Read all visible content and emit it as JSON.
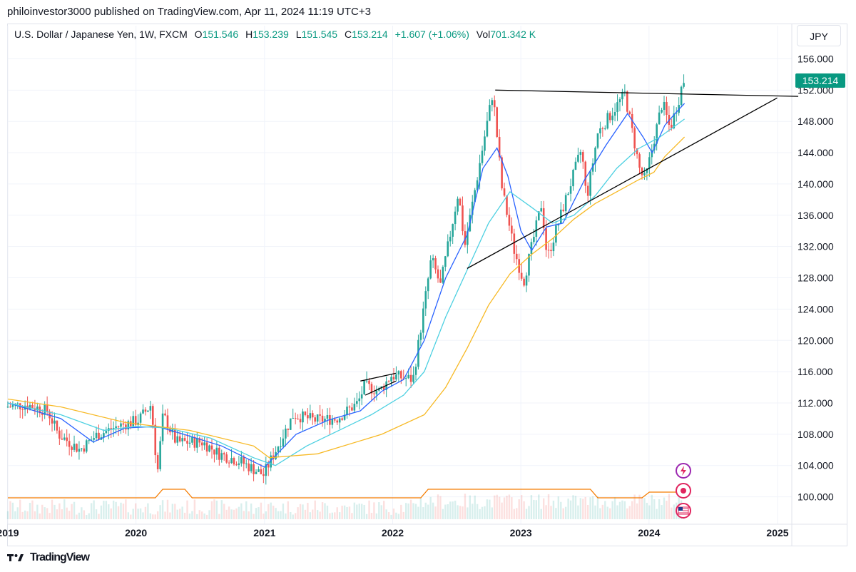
{
  "header": {
    "published_line": "philoinvestor3000 published on TradingView.com, Apr 11, 2024 11:19 UTC+3"
  },
  "legend": {
    "symbol": "U.S. Dollar / Japanese Yen, 1W, FXCM",
    "o_label": "O",
    "o_value": "151.546",
    "h_label": "H",
    "h_value": "153.239",
    "l_label": "L",
    "l_value": "151.545",
    "c_label": "C",
    "c_value": "153.214",
    "change": "+1.607 (+1.06%)",
    "vol_label": "Vol",
    "vol_value": "701.342 K"
  },
  "currency_button": "JPY",
  "footer": {
    "brand": "TradingView"
  },
  "colors": {
    "up": "#26a69a",
    "down": "#ef5350",
    "ema_fast": "#2962ff",
    "ema_mid": "#4dd0e1",
    "ema_slow": "#f7b924",
    "volume_ma": "#f57c00",
    "price_tag": "#089981",
    "grid": "#f0f3fa"
  },
  "chart_data": {
    "type": "candlestick",
    "title": "U.S. Dollar / Japanese Yen, 1W, FXCM",
    "ylim": [
      96.5,
      157.5
    ],
    "y_ticks": [
      "156.000",
      "152.000",
      "148.000",
      "144.000",
      "140.000",
      "136.000",
      "132.000",
      "128.000",
      "124.000",
      "120.000",
      "116.000",
      "112.000",
      "108.000",
      "104.000",
      "100.000"
    ],
    "x_ticks": [
      "2019",
      "2020",
      "2021",
      "2022",
      "2023",
      "2024",
      "2025"
    ],
    "last_price": "153.214",
    "price_path": [
      [
        "2019-01-01",
        111.5
      ],
      [
        "2019-03-01",
        111.8
      ],
      [
        "2019-05-01",
        111.0
      ],
      [
        "2019-06-01",
        108.0
      ],
      [
        "2019-08-01",
        106.0
      ],
      [
        "2019-09-15",
        107.8
      ],
      [
        "2019-11-15",
        109.0
      ],
      [
        "2020-01-15",
        109.8
      ],
      [
        "2020-02-20",
        111.8
      ],
      [
        "2020-03-09",
        103.0
      ],
      [
        "2020-03-25",
        110.5
      ],
      [
        "2020-05-01",
        107.0
      ],
      [
        "2020-07-15",
        107.0
      ],
      [
        "2020-09-01",
        105.5
      ],
      [
        "2020-11-01",
        104.5
      ],
      [
        "2021-01-05",
        102.8
      ],
      [
        "2021-03-31",
        110.5
      ],
      [
        "2021-06-01",
        109.8
      ],
      [
        "2021-08-01",
        110.0
      ],
      [
        "2021-10-01",
        112.0
      ],
      [
        "2021-10-20",
        114.2
      ],
      [
        "2021-12-01",
        113.5
      ],
      [
        "2022-01-04",
        115.5
      ],
      [
        "2022-03-07",
        115.0
      ],
      [
        "2022-04-28",
        130.5
      ],
      [
        "2022-05-24",
        127.0
      ],
      [
        "2022-07-14",
        139.0
      ],
      [
        "2022-08-01",
        132.0
      ],
      [
        "2022-10-20",
        151.8
      ],
      [
        "2022-11-15",
        139.5
      ],
      [
        "2022-12-20",
        131.5
      ],
      [
        "2023-01-16",
        127.5
      ],
      [
        "2023-03-08",
        137.5
      ],
      [
        "2023-03-24",
        130.5
      ],
      [
        "2023-06-30",
        144.5
      ],
      [
        "2023-07-14",
        138.0
      ],
      [
        "2023-08-15",
        146.5
      ],
      [
        "2023-10-31",
        151.5
      ],
      [
        "2023-12-14",
        141.5
      ],
      [
        "2023-12-28",
        140.5
      ],
      [
        "2024-02-15",
        150.5
      ],
      [
        "2024-03-08",
        147.0
      ],
      [
        "2024-04-08",
        151.8
      ],
      [
        "2024-04-11",
        153.2
      ]
    ],
    "moving_averages": [
      {
        "points": [
          [
            "2019-01-01",
            112.0
          ],
          [
            "2019-06-01",
            110.0
          ],
          [
            "2019-09-01",
            107.0
          ],
          [
            "2019-12-01",
            108.8
          ],
          [
            "2020-03-01",
            109.0
          ],
          [
            "2020-05-01",
            108.2
          ],
          [
            "2020-09-01",
            106.5
          ],
          [
            "2021-01-01",
            103.8
          ],
          [
            "2021-04-01",
            108.0
          ],
          [
            "2021-07-01",
            109.8
          ],
          [
            "2021-10-01",
            111.0
          ],
          [
            "2021-12-01",
            113.5
          ],
          [
            "2022-02-01",
            115.0
          ],
          [
            "2022-04-01",
            120.0
          ],
          [
            "2022-06-01",
            128.0
          ],
          [
            "2022-08-01",
            133.5
          ],
          [
            "2022-09-15",
            142.0
          ],
          [
            "2022-10-25",
            144.6
          ],
          [
            "2022-11-25",
            141.0
          ],
          [
            "2023-01-01",
            134.0
          ],
          [
            "2023-02-01",
            131.5
          ],
          [
            "2023-03-15",
            134.5
          ],
          [
            "2023-05-01",
            135.0
          ],
          [
            "2023-07-01",
            140.5
          ],
          [
            "2023-09-01",
            145.0
          ],
          [
            "2023-11-01",
            149.0
          ],
          [
            "2023-12-15",
            146.0
          ],
          [
            "2024-01-10",
            144.0
          ],
          [
            "2024-02-15",
            147.5
          ],
          [
            "2024-03-15",
            149.0
          ],
          [
            "2024-04-11",
            150.3
          ]
        ]
      },
      {
        "points": [
          [
            "2019-01-01",
            112.0
          ],
          [
            "2019-06-01",
            110.5
          ],
          [
            "2019-10-01",
            108.5
          ],
          [
            "2020-01-01",
            109.0
          ],
          [
            "2020-04-01",
            108.8
          ],
          [
            "2020-08-01",
            107.5
          ],
          [
            "2020-12-01",
            105.0
          ],
          [
            "2021-02-01",
            104.0
          ],
          [
            "2021-05-01",
            106.5
          ],
          [
            "2021-08-01",
            108.5
          ],
          [
            "2021-11-01",
            110.5
          ],
          [
            "2022-02-01",
            113.0
          ],
          [
            "2022-04-01",
            116.0
          ],
          [
            "2022-06-01",
            123.0
          ],
          [
            "2022-08-01",
            129.0
          ],
          [
            "2022-10-01",
            135.0
          ],
          [
            "2022-12-01",
            139.0
          ],
          [
            "2023-02-01",
            137.0
          ],
          [
            "2023-04-01",
            135.0
          ],
          [
            "2023-06-01",
            136.0
          ],
          [
            "2023-08-01",
            138.5
          ],
          [
            "2023-10-01",
            142.0
          ],
          [
            "2023-12-01",
            144.5
          ],
          [
            "2024-02-01",
            146.0
          ],
          [
            "2024-04-11",
            148.3
          ]
        ]
      },
      {
        "points": [
          [
            "2019-01-01",
            112.5
          ],
          [
            "2019-06-01",
            111.5
          ],
          [
            "2019-12-01",
            109.5
          ],
          [
            "2020-06-01",
            108.5
          ],
          [
            "2020-12-01",
            106.5
          ],
          [
            "2021-01-15",
            105.0
          ],
          [
            "2021-06-01",
            105.5
          ],
          [
            "2021-12-01",
            108.0
          ],
          [
            "2022-04-01",
            110.5
          ],
          [
            "2022-06-01",
            114.0
          ],
          [
            "2022-08-01",
            119.0
          ],
          [
            "2022-10-01",
            124.5
          ],
          [
            "2022-12-01",
            128.5
          ],
          [
            "2023-02-01",
            131.0
          ],
          [
            "2023-04-01",
            133.0
          ],
          [
            "2023-06-01",
            135.5
          ],
          [
            "2023-08-01",
            137.5
          ],
          [
            "2023-10-01",
            139.0
          ],
          [
            "2023-12-01",
            140.5
          ],
          [
            "2024-01-15",
            141.5
          ],
          [
            "2024-02-15",
            143.5
          ],
          [
            "2024-04-11",
            146.0
          ]
        ]
      }
    ],
    "trendlines": [
      {
        "points": [
          [
            "2022-10-20",
            152.0
          ],
          [
            "2025-03-01",
            151.2
          ]
        ]
      },
      {
        "points": [
          [
            "2022-08-01",
            129.2
          ],
          [
            "2024-12-31",
            151.0
          ]
        ]
      },
      {
        "points": [
          [
            "2021-10-01",
            114.8
          ],
          [
            "2022-01-10",
            115.8
          ]
        ]
      },
      {
        "points": [
          [
            "2021-10-15",
            113.0
          ],
          [
            "2022-01-10",
            114.8
          ]
        ]
      }
    ]
  }
}
